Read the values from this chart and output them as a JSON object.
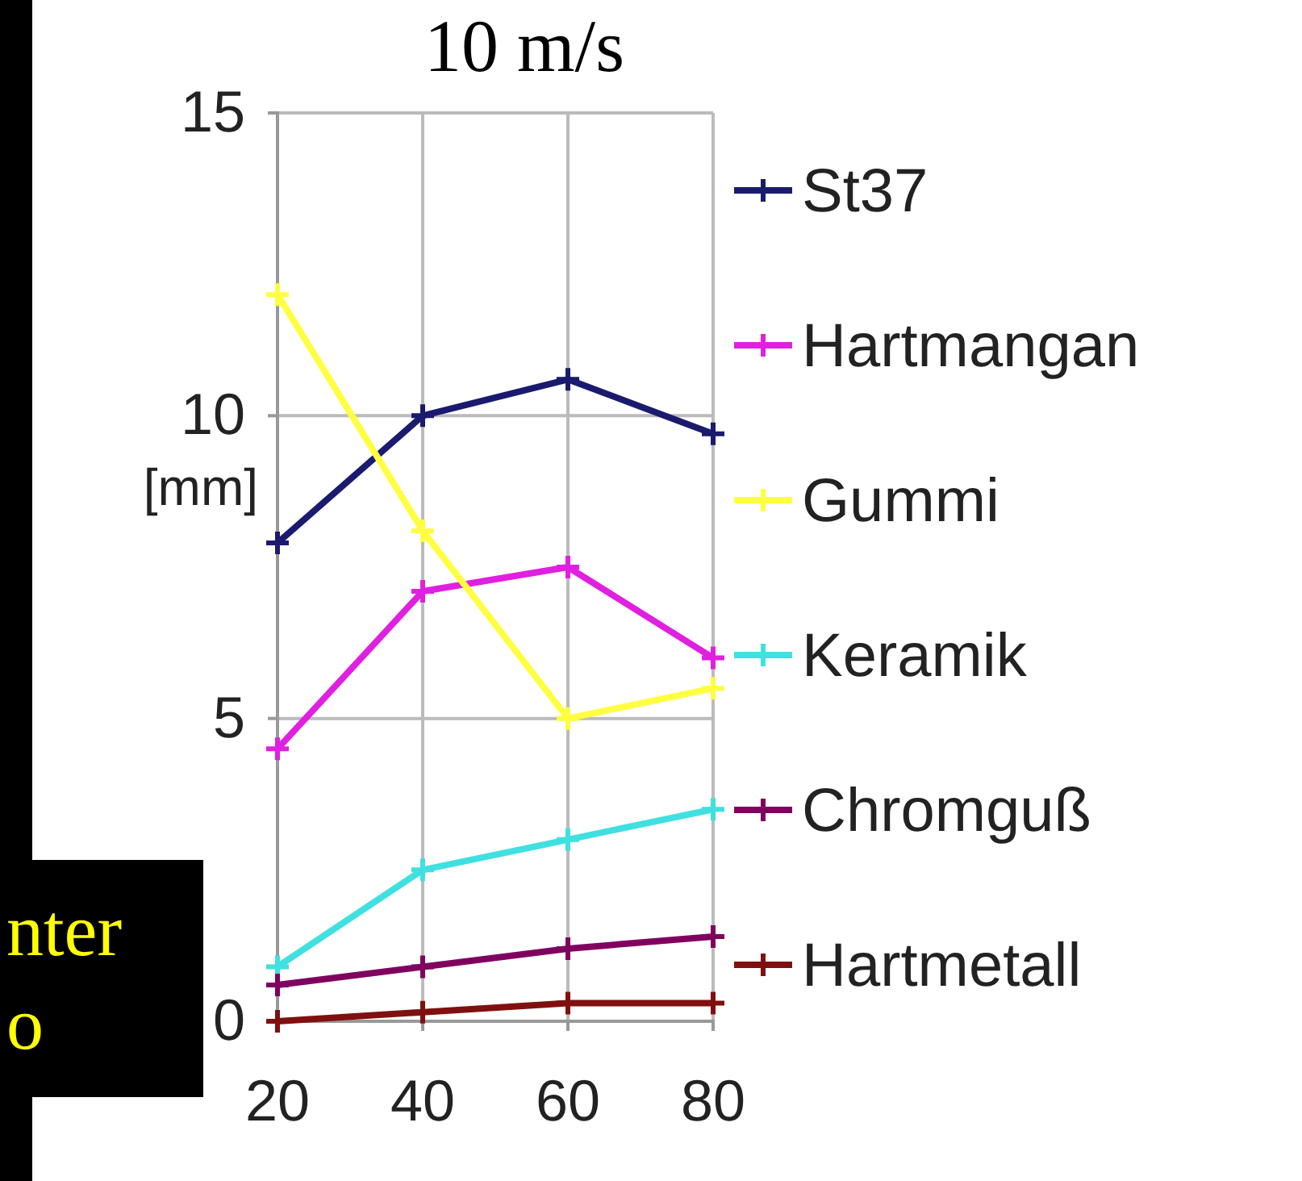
{
  "chart_data": {
    "type": "line",
    "title": "10 m/s",
    "ylabel": "[mm]",
    "x": [
      20,
      40,
      60,
      80
    ],
    "xlim": [
      20,
      80
    ],
    "xticks": [
      20,
      40,
      60,
      80
    ],
    "ylim": [
      0,
      15
    ],
    "yticks": [
      0,
      5,
      10,
      15
    ],
    "grid": true,
    "legend": "right",
    "marker": "cross",
    "line_style": "solid",
    "series": [
      {
        "name": "St37",
        "color": "#1a1a6e",
        "values": [
          7.9,
          10,
          10.6,
          9.7
        ]
      },
      {
        "name": "Hartmangan",
        "color": "#e020e0",
        "values": [
          4.5,
          7.1,
          7.5,
          6.0
        ]
      },
      {
        "name": "Gummi",
        "color": "#ffff40",
        "values": [
          12,
          8.1,
          5,
          5.5
        ]
      },
      {
        "name": "Keramik",
        "color": "#40e0e0",
        "values": [
          0.9,
          2.5,
          3,
          3.5
        ]
      },
      {
        "name": "Chromguß",
        "color": "#800060",
        "values": [
          0.6,
          0.9,
          1.2,
          1.4
        ]
      },
      {
        "name": "Hartmetall",
        "color": "#801010",
        "values": [
          0,
          0.15,
          0.3,
          0.3
        ]
      }
    ],
    "annotations": [
      "nter",
      "o"
    ]
  }
}
